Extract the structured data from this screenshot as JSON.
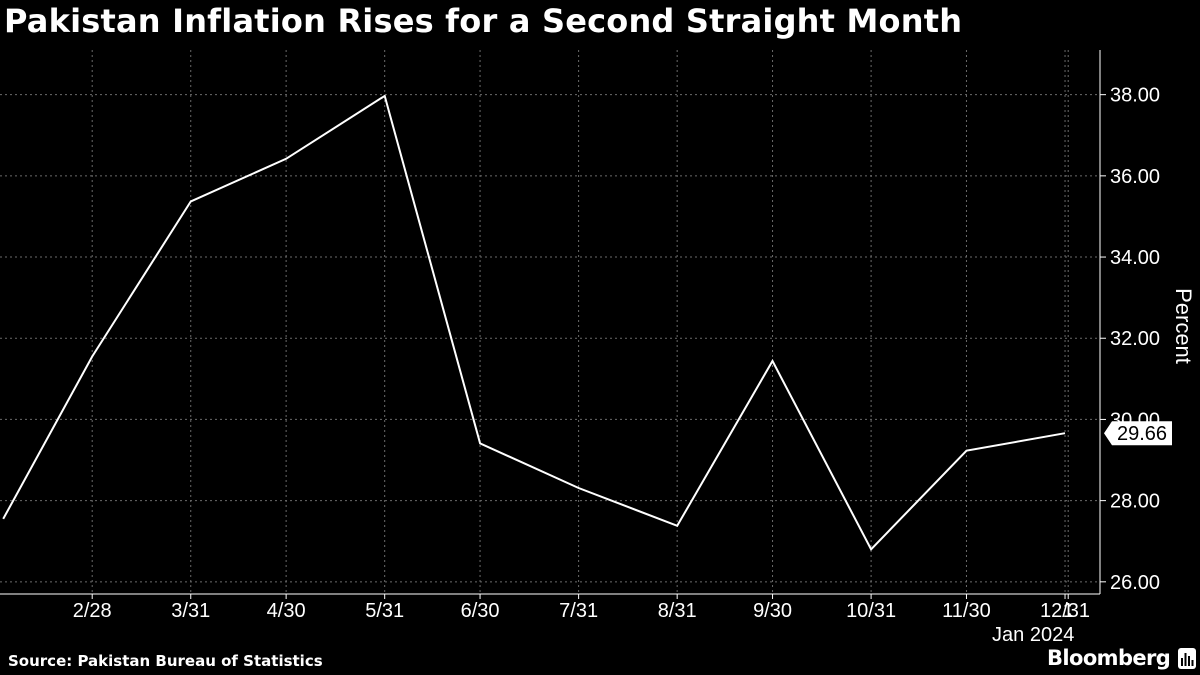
{
  "chart_data": {
    "type": "line",
    "title": "Pakistan Inflation Rises for a Second Straight Month",
    "ylabel": "Percent",
    "x": [
      "2023-01-31",
      "2023-02-28",
      "2023-03-31",
      "2023-04-30",
      "2023-05-31",
      "2023-06-30",
      "2023-07-31",
      "2023-08-31",
      "2023-09-30",
      "2023-10-31",
      "2023-11-30",
      "2023-12-31"
    ],
    "series": [
      {
        "name": "",
        "values": [
          27.55,
          31.55,
          35.37,
          36.42,
          37.97,
          29.41,
          28.31,
          27.38,
          31.44,
          26.8,
          29.23,
          29.66
        ]
      }
    ],
    "xticks": [
      {
        "date": "2023-02-28",
        "label": "2/28"
      },
      {
        "date": "2023-03-31",
        "label": "3/31"
      },
      {
        "date": "2023-04-30",
        "label": "4/30"
      },
      {
        "date": "2023-05-31",
        "label": "5/31"
      },
      {
        "date": "2023-06-30",
        "label": "6/30"
      },
      {
        "date": "2023-07-31",
        "label": "7/31"
      },
      {
        "date": "2023-08-31",
        "label": "8/31"
      },
      {
        "date": "2023-09-30",
        "label": "9/30"
      },
      {
        "date": "2023-10-31",
        "label": "10/31"
      },
      {
        "date": "2023-11-30",
        "label": "11/30"
      },
      {
        "date": "2023-12-31",
        "label": "12/31"
      },
      {
        "date": "2024-01-01",
        "label": "1"
      }
    ],
    "year_label": "Jan 2024",
    "xlim": [
      "2023-01-30",
      "2024-01-11"
    ],
    "yticks": [
      26,
      28,
      30,
      32,
      34,
      36,
      38
    ],
    "ytick_labels": [
      "26.00",
      "28.00",
      "30.00",
      "32.00",
      "34.00",
      "36.00",
      "38.00"
    ],
    "ylim": [
      25.7,
      39.1
    ],
    "last_value_label": "29.66",
    "grid": true,
    "yaxis_side": "right",
    "colors": {
      "background": "#000000",
      "line": "#ffffff",
      "grid": "#6b6b6b",
      "text": "#ffffff"
    }
  },
  "footer": {
    "source": "Source: Pakistan Bureau of Statistics",
    "brand": "Bloomberg"
  }
}
